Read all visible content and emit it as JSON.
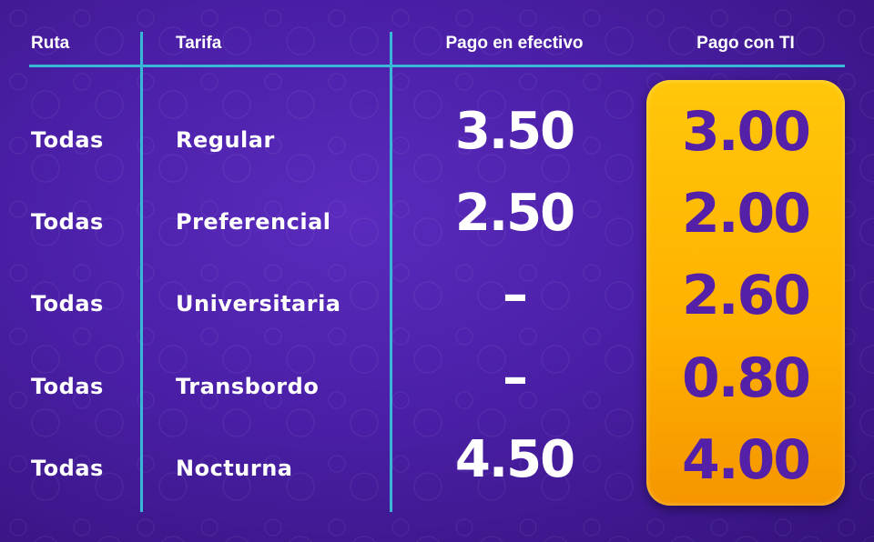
{
  "colors": {
    "background": "#4a1fa6",
    "lines": "#38b7d6",
    "highlight": "#ffb800",
    "highlight_text": "#5520a8"
  },
  "headers": {
    "route": "Ruta",
    "fare": "Tarifa",
    "cash": "Pago en efectivo",
    "ti": "Pago con TI"
  },
  "rows": [
    {
      "route": "Todas",
      "fare": "Regular",
      "cash": "3.50",
      "ti": "3.00"
    },
    {
      "route": "Todas",
      "fare": "Preferencial",
      "cash": "2.50",
      "ti": "2.00"
    },
    {
      "route": "Todas",
      "fare": "Universitaria",
      "cash": "–",
      "ti": "2.60"
    },
    {
      "route": "Todas",
      "fare": "Transbordo",
      "cash": "–",
      "ti": "0.80"
    },
    {
      "route": "Todas",
      "fare": "Nocturna",
      "cash": "4.50",
      "ti": "4.00"
    }
  ]
}
